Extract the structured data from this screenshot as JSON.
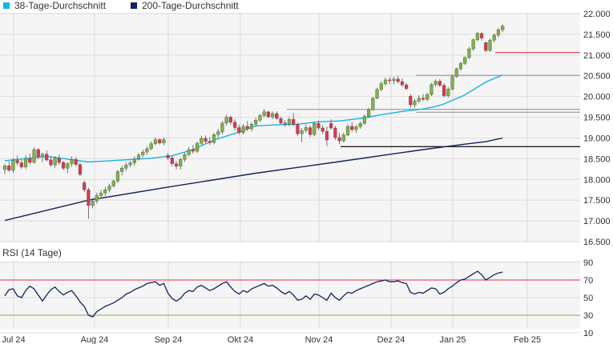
{
  "legend": {
    "items": [
      {
        "name": "38-Tage-Durchschnitt",
        "color": "#17b3e6"
      },
      {
        "name": "200-Tage-Durchschnitt",
        "color": "#14235e"
      }
    ]
  },
  "rsi_panel": {
    "label": "RSI (14 Tage)"
  },
  "chart_data": [
    {
      "type": "candlestick",
      "title": "",
      "y_tick_labels": [
        "22.000",
        "21.500",
        "21.000",
        "20.500",
        "20.000",
        "19.500",
        "19.000",
        "18.500",
        "18.000",
        "17.500",
        "17.000",
        "16.500"
      ],
      "x_tick_labels": [
        "Jul 24",
        "Aug 24",
        "Sep 24",
        "Okt 24",
        "Nov 24",
        "Dez 24",
        "Jan 25",
        "Feb 25"
      ],
      "ylim": [
        16500,
        22000
      ],
      "grid": true,
      "legend_position": "top-left",
      "colors": {
        "up": "#7cb342",
        "down": "#e0344e",
        "ma38": "#17b3e6",
        "ma200": "#14235e"
      },
      "reference_lines": [
        {
          "value": 21060,
          "color": "#e0344e"
        },
        {
          "value": 20510,
          "color": "#999999"
        },
        {
          "value": 19690,
          "color": "#999999"
        },
        {
          "value": 19620,
          "color": "#999999"
        },
        {
          "value": 18790,
          "color": "#222222"
        }
      ],
      "series": [
        {
          "name": "38-Tage-Durchschnitt",
          "x": [
            0,
            10,
            20,
            30,
            35,
            40,
            45,
            50,
            55,
            60,
            65,
            70,
            75,
            80,
            85,
            90,
            95,
            100,
            103,
            105,
            110,
            115,
            119
          ],
          "values": [
            18450,
            18560,
            18420,
            18480,
            18510,
            18570,
            18720,
            18950,
            19110,
            19290,
            19320,
            19330,
            19390,
            19410,
            19470,
            19560,
            19640,
            19700,
            19760,
            19820,
            20040,
            20350,
            20520
          ]
        },
        {
          "name": "200-Tage-Durchschnitt",
          "x": [
            0,
            20,
            40,
            60,
            80,
            100,
            110,
            115,
            119
          ],
          "values": [
            17010,
            17500,
            17830,
            18150,
            18430,
            18720,
            18850,
            18910,
            19000
          ]
        }
      ],
      "candles": [
        [
          0,
          18240,
          18380,
          18130,
          18330
        ],
        [
          1,
          18330,
          18430,
          18180,
          18220
        ],
        [
          2,
          18220,
          18520,
          18160,
          18460
        ],
        [
          3,
          18460,
          18570,
          18340,
          18400
        ],
        [
          4,
          18400,
          18480,
          18250,
          18300
        ],
        [
          5,
          18300,
          18580,
          18250,
          18500
        ],
        [
          6,
          18500,
          18620,
          18360,
          18410
        ],
        [
          7,
          18410,
          18780,
          18380,
          18720
        ],
        [
          8,
          18720,
          18750,
          18490,
          18540
        ],
        [
          9,
          18540,
          18650,
          18420,
          18610
        ],
        [
          10,
          18610,
          18700,
          18430,
          18470
        ],
        [
          11,
          18470,
          18560,
          18300,
          18350
        ],
        [
          12,
          18350,
          18560,
          18280,
          18510
        ],
        [
          13,
          18510,
          18600,
          18350,
          18410
        ],
        [
          14,
          18410,
          18450,
          18220,
          18270
        ],
        [
          15,
          18270,
          18420,
          18150,
          18380
        ],
        [
          16,
          18380,
          18560,
          18300,
          18480
        ],
        [
          17,
          18480,
          18540,
          18320,
          18360
        ],
        [
          18,
          18360,
          18400,
          18080,
          18120
        ],
        [
          19,
          17920,
          17980,
          17700,
          17750
        ],
        [
          20,
          17750,
          17800,
          17050,
          17370
        ],
        [
          21,
          17370,
          17560,
          17300,
          17480
        ],
        [
          22,
          17480,
          17680,
          17420,
          17610
        ],
        [
          23,
          17610,
          17750,
          17540,
          17670
        ],
        [
          24,
          17670,
          17820,
          17600,
          17750
        ],
        [
          25,
          17750,
          17900,
          17690,
          17840
        ],
        [
          26,
          17840,
          18000,
          17800,
          17960
        ],
        [
          27,
          17960,
          18230,
          17920,
          18190
        ],
        [
          28,
          18190,
          18330,
          18100,
          18270
        ],
        [
          29,
          18270,
          18420,
          18200,
          18350
        ],
        [
          30,
          18350,
          18450,
          18290,
          18400
        ],
        [
          31,
          18400,
          18560,
          18330,
          18500
        ],
        [
          32,
          18500,
          18640,
          18450,
          18590
        ],
        [
          33,
          18590,
          18720,
          18530,
          18660
        ],
        [
          34,
          18660,
          18800,
          18590,
          18740
        ],
        [
          35,
          18740,
          18920,
          18700,
          18860
        ],
        [
          36,
          18860,
          19020,
          18820,
          18960
        ],
        [
          37,
          18960,
          18990,
          18840,
          18880
        ],
        [
          38,
          18880,
          19010,
          18820,
          18960
        ],
        [
          39,
          18580,
          18640,
          18470,
          18520
        ],
        [
          40,
          18520,
          18560,
          18320,
          18380
        ],
        [
          41,
          18380,
          18450,
          18250,
          18320
        ],
        [
          42,
          18320,
          18520,
          18240,
          18480
        ],
        [
          43,
          18480,
          18650,
          18420,
          18600
        ],
        [
          44,
          18600,
          18780,
          18560,
          18720
        ],
        [
          45,
          18720,
          18830,
          18620,
          18680
        ],
        [
          46,
          18680,
          18920,
          18640,
          18870
        ],
        [
          47,
          18870,
          19050,
          18830,
          18990
        ],
        [
          48,
          18990,
          19060,
          18870,
          18920
        ],
        [
          49,
          18920,
          19020,
          18830,
          18890
        ],
        [
          50,
          18890,
          19120,
          18850,
          19080
        ],
        [
          51,
          19080,
          19220,
          19000,
          19150
        ],
        [
          52,
          19150,
          19410,
          19100,
          19360
        ],
        [
          53,
          19360,
          19560,
          19300,
          19500
        ],
        [
          54,
          19500,
          19540,
          19320,
          19380
        ],
        [
          55,
          19380,
          19450,
          19190,
          19250
        ],
        [
          56,
          19250,
          19320,
          19080,
          19130
        ],
        [
          57,
          19130,
          19340,
          19080,
          19280
        ],
        [
          58,
          19280,
          19410,
          19170,
          19220
        ],
        [
          59,
          19220,
          19380,
          19160,
          19330
        ],
        [
          60,
          19330,
          19490,
          19270,
          19430
        ],
        [
          61,
          19430,
          19580,
          19380,
          19540
        ],
        [
          62,
          19540,
          19700,
          19500,
          19630
        ],
        [
          63,
          19630,
          19650,
          19480,
          19510
        ],
        [
          64,
          19510,
          19640,
          19450,
          19590
        ],
        [
          65,
          19590,
          19640,
          19440,
          19470
        ],
        [
          66,
          19470,
          19510,
          19320,
          19360
        ],
        [
          67,
          19360,
          19430,
          19270,
          19330
        ],
        [
          68,
          19330,
          19500,
          19290,
          19450
        ],
        [
          69,
          19450,
          19600,
          19280,
          19330
        ],
        [
          70,
          19330,
          19370,
          19050,
          19100
        ],
        [
          71,
          19100,
          19230,
          18900,
          19180
        ],
        [
          72,
          19180,
          19330,
          19120,
          19250
        ],
        [
          73,
          19250,
          19300,
          19020,
          19080
        ],
        [
          74,
          19080,
          19390,
          19040,
          19350
        ],
        [
          75,
          19350,
          19420,
          19190,
          19240
        ],
        [
          76,
          19240,
          19320,
          19100,
          19160
        ],
        [
          77,
          19160,
          19280,
          18800,
          18950
        ],
        [
          78,
          19350,
          19450,
          19200,
          19240
        ],
        [
          79,
          19240,
          19290,
          18950,
          19010
        ],
        [
          80,
          19010,
          19120,
          18850,
          18930
        ],
        [
          81,
          18930,
          19130,
          18890,
          19070
        ],
        [
          82,
          19070,
          19330,
          19040,
          19280
        ],
        [
          83,
          19280,
          19380,
          19150,
          19200
        ],
        [
          84,
          19200,
          19320,
          19120,
          19270
        ],
        [
          85,
          19270,
          19400,
          19220,
          19350
        ],
        [
          86,
          19350,
          19570,
          19320,
          19520
        ],
        [
          87,
          19520,
          19730,
          19480,
          19680
        ],
        [
          88,
          19680,
          19990,
          19650,
          19960
        ],
        [
          89,
          19960,
          20210,
          19930,
          20170
        ],
        [
          90,
          20170,
          20370,
          20120,
          20310
        ],
        [
          91,
          20310,
          20460,
          20260,
          20400
        ],
        [
          92,
          20400,
          20470,
          20300,
          20380
        ],
        [
          93,
          20380,
          20480,
          20290,
          20420
        ],
        [
          94,
          20420,
          20500,
          20320,
          20360
        ],
        [
          95,
          20360,
          20440,
          20240,
          20280
        ],
        [
          96,
          20280,
          20330,
          20150,
          20190
        ],
        [
          97,
          20010,
          20060,
          19730,
          19800
        ],
        [
          98,
          19800,
          19950,
          19730,
          19890
        ],
        [
          99,
          19890,
          20030,
          19840,
          19960
        ],
        [
          100,
          19960,
          20060,
          19890,
          19930
        ],
        [
          101,
          19930,
          20090,
          19890,
          20050
        ],
        [
          102,
          20050,
          20330,
          20010,
          20290
        ],
        [
          103,
          20290,
          20410,
          20230,
          20370
        ],
        [
          104,
          20370,
          20420,
          20230,
          20270
        ],
        [
          105,
          20270,
          20320,
          19980,
          20020
        ],
        [
          106,
          20020,
          20230,
          19980,
          20180
        ],
        [
          107,
          20180,
          20530,
          20150,
          20480
        ],
        [
          108,
          20480,
          20700,
          20450,
          20670
        ],
        [
          109,
          20670,
          20840,
          20620,
          20800
        ],
        [
          110,
          20800,
          20970,
          20760,
          20940
        ],
        [
          111,
          20940,
          21200,
          20900,
          21150
        ],
        [
          112,
          21150,
          21400,
          21100,
          21370
        ],
        [
          113,
          21370,
          21560,
          21330,
          21520
        ],
        [
          114,
          21520,
          21550,
          21350,
          21410
        ],
        [
          115,
          21300,
          21320,
          21070,
          21110
        ],
        [
          116,
          21110,
          21400,
          21080,
          21360
        ],
        [
          117,
          21360,
          21520,
          21300,
          21480
        ],
        [
          118,
          21480,
          21650,
          21430,
          21610
        ],
        [
          119,
          21610,
          21740,
          21550,
          21700
        ]
      ]
    },
    {
      "type": "line",
      "title": "RSI (14 Tage)",
      "y_tick_labels": [
        "90",
        "70",
        "50",
        "30",
        "10"
      ],
      "ylim": [
        10,
        90
      ],
      "reference_lines": [
        {
          "value": 70,
          "color": "#e0344e"
        },
        {
          "value": 30,
          "color": "#7cb342"
        }
      ],
      "series": [
        {
          "name": "RSI (14 Tage)",
          "color": "#14235e",
          "values": [
            52,
            59,
            60,
            52,
            50,
            58,
            63,
            60,
            53,
            46,
            53,
            59,
            62,
            57,
            53,
            56,
            58,
            52,
            45,
            40,
            30,
            28,
            34,
            37,
            40,
            42,
            44,
            47,
            50,
            54,
            56,
            59,
            61,
            63,
            66,
            67,
            68,
            64,
            66,
            55,
            49,
            46,
            49,
            55,
            58,
            57,
            62,
            64,
            61,
            58,
            60,
            63,
            66,
            68,
            62,
            57,
            54,
            58,
            56,
            60,
            62,
            64,
            66,
            63,
            64,
            61,
            57,
            54,
            57,
            53,
            47,
            48,
            52,
            48,
            54,
            53,
            50,
            47,
            55,
            50,
            47,
            52,
            56,
            55,
            58,
            60,
            62,
            64,
            66,
            68,
            69,
            70,
            68,
            68,
            69,
            67,
            66,
            56,
            54,
            56,
            55,
            58,
            61,
            60,
            54,
            56,
            60,
            63,
            67,
            70,
            71,
            74,
            77,
            80,
            76,
            70,
            73,
            76,
            78,
            79
          ]
        }
      ]
    }
  ]
}
